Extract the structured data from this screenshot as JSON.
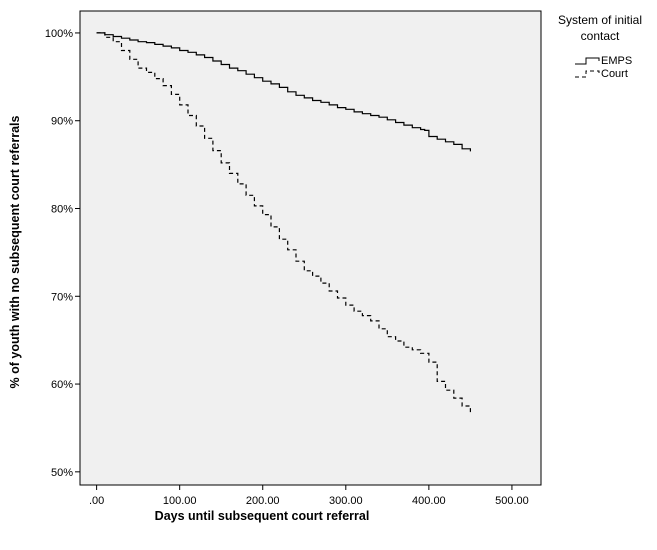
{
  "chart_data": {
    "type": "line",
    "title": "",
    "xlabel": "Days until subsequent court referral",
    "ylabel": "% of youth with no subsequent court referrals",
    "xlim": [
      -20,
      535
    ],
    "ylim": [
      48.5,
      102.5
    ],
    "x_ticks": [
      0,
      100,
      200,
      300,
      400,
      500
    ],
    "x_tick_labels": [
      ".00",
      "100.00",
      "200.00",
      "300.00",
      "400.00",
      "500.00"
    ],
    "y_ticks": [
      50,
      60,
      70,
      80,
      90,
      100
    ],
    "y_tick_labels": [
      "50%",
      "60%",
      "70%",
      "80%",
      "90%",
      "100%"
    ],
    "grid": false,
    "plot_background": "#f0f0f0",
    "legend_position": "right",
    "legend_title": "System of initial contact",
    "legend_title_lines": [
      "System of initial",
      "contact"
    ],
    "series": [
      {
        "name": "EMPS",
        "style": "solid",
        "color": "#000000",
        "x": [
          0,
          10,
          20,
          30,
          40,
          50,
          60,
          70,
          80,
          90,
          100,
          110,
          120,
          130,
          140,
          150,
          160,
          170,
          180,
          190,
          200,
          210,
          220,
          230,
          240,
          250,
          260,
          270,
          280,
          290,
          300,
          310,
          320,
          330,
          340,
          350,
          360,
          370,
          380,
          390,
          395,
          400,
          410,
          420,
          430,
          440,
          450
        ],
        "y": [
          100.0,
          99.8,
          99.6,
          99.4,
          99.2,
          99.0,
          98.9,
          98.7,
          98.5,
          98.3,
          98.0,
          97.8,
          97.5,
          97.2,
          96.8,
          96.4,
          96.0,
          95.7,
          95.3,
          94.9,
          94.5,
          94.2,
          93.8,
          93.3,
          92.9,
          92.6,
          92.3,
          92.1,
          91.8,
          91.5,
          91.3,
          91.0,
          90.8,
          90.6,
          90.4,
          90.1,
          89.8,
          89.5,
          89.2,
          89.0,
          88.9,
          88.2,
          87.9,
          87.6,
          87.3,
          86.8,
          86.5
        ]
      },
      {
        "name": "Court",
        "style": "dashed",
        "color": "#000000",
        "x": [
          0,
          10,
          20,
          30,
          40,
          50,
          60,
          70,
          80,
          90,
          100,
          110,
          120,
          130,
          140,
          150,
          160,
          170,
          180,
          190,
          200,
          210,
          220,
          230,
          240,
          250,
          260,
          270,
          280,
          290,
          300,
          310,
          320,
          330,
          340,
          350,
          360,
          370,
          380,
          390,
          400,
          410,
          420,
          430,
          440,
          450
        ],
        "y": [
          100.0,
          99.5,
          99.0,
          98.0,
          97.0,
          96.0,
          95.5,
          94.8,
          94.0,
          93.0,
          91.8,
          90.6,
          89.4,
          88.0,
          86.6,
          85.2,
          84.0,
          82.8,
          81.5,
          80.3,
          79.3,
          77.9,
          76.5,
          75.3,
          74.0,
          72.9,
          72.3,
          71.5,
          70.6,
          69.8,
          69.0,
          68.3,
          67.8,
          67.2,
          66.3,
          65.4,
          64.9,
          64.2,
          63.9,
          63.5,
          62.5,
          60.3,
          59.3,
          58.4,
          57.5,
          56.5
        ]
      }
    ]
  }
}
